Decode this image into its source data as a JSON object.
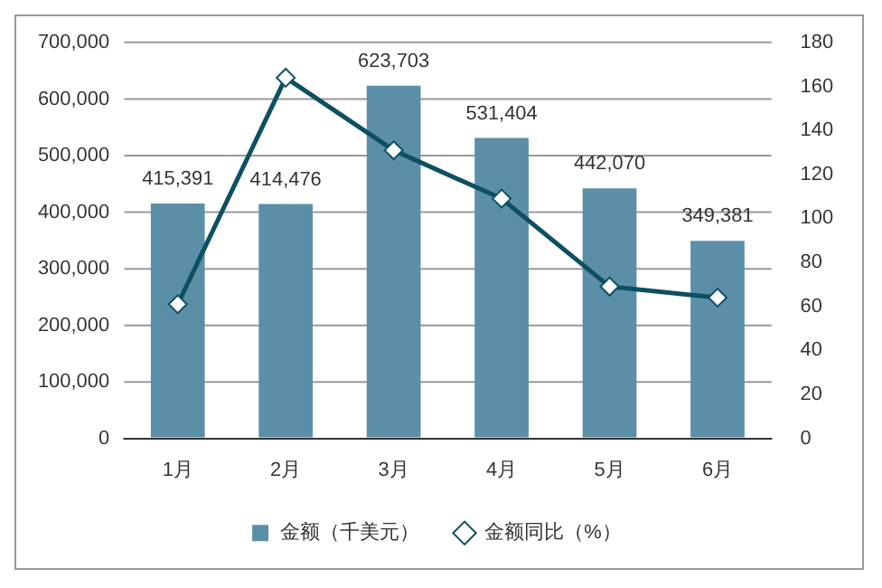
{
  "chart_data": {
    "type": "bar",
    "categories": [
      "1月",
      "2月",
      "3月",
      "4月",
      "5月",
      "6月"
    ],
    "series": [
      {
        "name": "金额（千美元）",
        "color": "#5b8fa8",
        "values": [
          415391,
          414476,
          623703,
          531404,
          442070,
          349381
        ],
        "value_labels": [
          "415,391",
          "414,476",
          "623,703",
          "531,404",
          "442,070",
          "349,381"
        ]
      },
      {
        "name": "金额同比（%）",
        "type": "line",
        "axis": "y2",
        "color": "#0d4f63",
        "values": [
          61,
          164,
          131,
          109,
          69,
          64
        ],
        "marker": "diamond"
      }
    ],
    "ylim": [
      0,
      700000
    ],
    "yticks": [
      0,
      {
        "value": 100000,
        "label": "100,000"
      },
      {
        "value": 200000,
        "label": "200,000"
      },
      {
        "value": 300000,
        "label": "300,000"
      },
      {
        "value": 400000,
        "label": "400,000"
      },
      {
        "value": 500000,
        "label": "500,000"
      },
      {
        "value": 600000,
        "label": "600,000"
      },
      {
        "value": 700000,
        "label": "700,000"
      }
    ],
    "y2lim": [
      0,
      180
    ],
    "y2ticks": [
      0,
      20,
      40,
      60,
      80,
      100,
      120,
      140,
      160,
      180
    ],
    "grid": "y",
    "legend": "bottom"
  }
}
